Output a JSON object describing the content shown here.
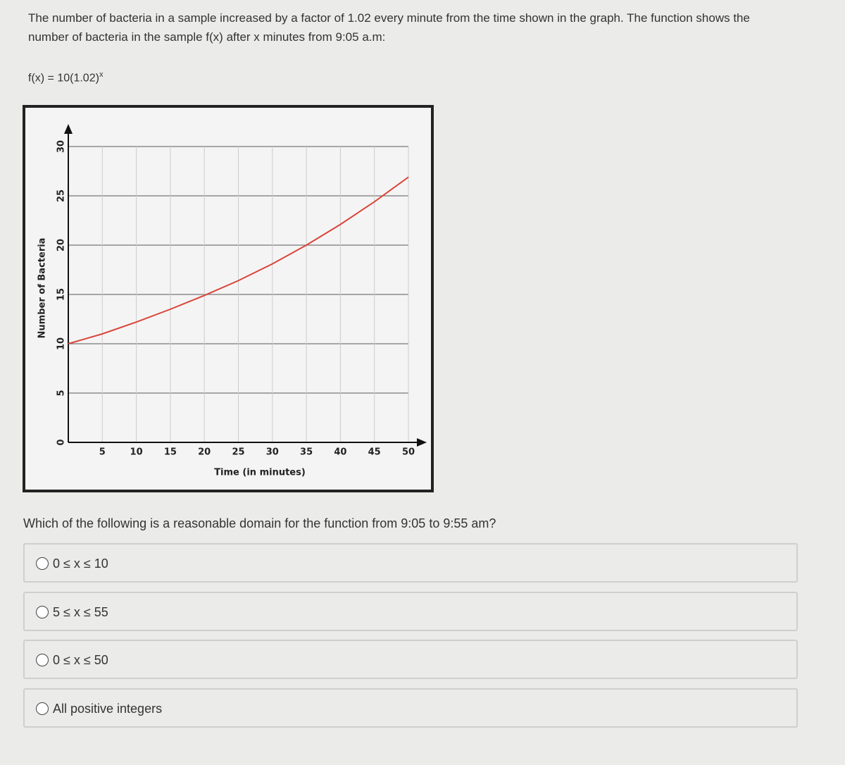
{
  "question": {
    "intro": "The number of bacteria in a sample increased by a factor of 1.02 every minute from the time shown in the graph. The function shows the number of bacteria in the sample f(x) after x minutes from 9:05 a.m:",
    "function": {
      "base": "f(x) = 10(1.02)",
      "exponent": "x"
    },
    "prompt": "Which of the following is a reasonable domain for the function from 9:05 to 9:55 am?",
    "options": [
      "0 ≤ x ≤ 10",
      "5 ≤ x ≤ 55",
      "0 ≤ x ≤ 50",
      "All positive integers"
    ]
  },
  "chart_data": {
    "type": "line",
    "xlabel": "Time (in minutes)",
    "ylabel": "Number of Bacteria",
    "x": [
      0,
      5,
      10,
      15,
      20,
      25,
      30,
      35,
      40,
      45,
      50
    ],
    "series": [
      {
        "color": "#d9453a",
        "values": [
          10,
          11.0,
          12.2,
          13.5,
          14.9,
          16.4,
          18.1,
          20.0,
          22.1,
          24.4,
          26.9
        ]
      }
    ],
    "xlim": [
      0,
      50
    ],
    "ylim": [
      0,
      30
    ],
    "xticks": [
      5,
      10,
      15,
      20,
      25,
      30,
      35,
      40,
      45,
      50
    ],
    "yticks": [
      0,
      5,
      10,
      15,
      20,
      25,
      30
    ],
    "grid": true
  }
}
